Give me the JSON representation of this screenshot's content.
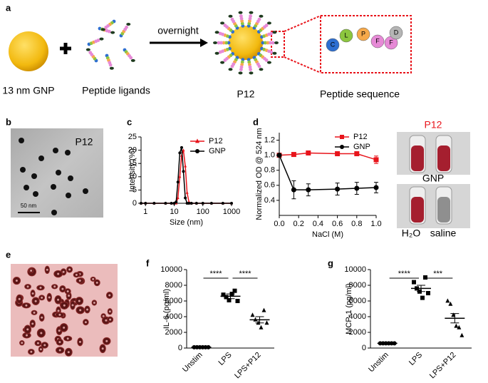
{
  "panel_labels": [
    "a",
    "b",
    "c",
    "d",
    "e",
    "f",
    "g"
  ],
  "scheme": {
    "gnp": "13 nm GNP",
    "ligands": "Peptide ligands",
    "arrow": "overnight",
    "product": "P12",
    "sequence_title": "Peptide sequence",
    "sequence": [
      "C",
      "L",
      "P",
      "F",
      "F",
      "D"
    ]
  },
  "tem": {
    "label": "P12",
    "scale_bar": "50 nm"
  },
  "tubes": {
    "top": "P12",
    "bottom": "GNP",
    "water": "H₂O",
    "saline": "saline"
  },
  "chart_data": [
    {
      "type": "line",
      "xlabel": "Size (nm)",
      "ylabel": "Intensity (%)",
      "xlog": true,
      "x": [
        0.7,
        1,
        2,
        5,
        8,
        10,
        11.7,
        13.5,
        15.7,
        18.2,
        21,
        24.4,
        28.2,
        32.7,
        40,
        60,
        100,
        200,
        500,
        1000
      ],
      "xlim": [
        0.7,
        1000
      ],
      "xticks": [
        1,
        10,
        100,
        1000
      ],
      "ylim": [
        0,
        25
      ],
      "yticks": [
        0,
        5,
        10,
        15,
        20,
        25
      ],
      "legend": "upper right",
      "series": [
        {
          "name": "P12",
          "color": "#e8141b",
          "marker": "triangle",
          "values": [
            0,
            0,
            0,
            0,
            0,
            0,
            0,
            2,
            10,
            18,
            20,
            14,
            4,
            0.5,
            0,
            0,
            0,
            0,
            0,
            0
          ]
        },
        {
          "name": "GNP",
          "color": "#000000",
          "marker": "circle",
          "values": [
            0,
            0,
            0,
            0,
            0,
            0,
            0.5,
            8,
            19,
            21,
            12,
            2,
            0,
            0,
            0,
            0,
            0,
            0,
            0,
            0
          ]
        }
      ]
    },
    {
      "type": "line",
      "xlabel": "NaCl (M)",
      "ylabel": "Normalized OD @ 524 nm",
      "x": [
        0,
        0.15,
        0.3,
        0.6,
        0.8,
        1
      ],
      "xlim": [
        0,
        1
      ],
      "xticks": [
        {
          "value": 0,
          "label": "0.0"
        },
        0.2,
        0.4,
        0.6,
        0.8,
        {
          "value": 1,
          "label": "1.0"
        }
      ],
      "ylim": [
        0.2,
        1.3
      ],
      "yticks": [
        0.4,
        0.6,
        0.8,
        {
          "value": 1,
          "label": "1.0"
        },
        1.2
      ],
      "legend": "upper right",
      "series": [
        {
          "name": "P12",
          "color": "#e8141b",
          "marker": "square",
          "values": [
            1,
            1.01,
            1.03,
            1.02,
            1.02,
            0.94
          ],
          "errors": [
            0,
            0.01,
            0.01,
            0.01,
            0.01,
            0.05
          ]
        },
        {
          "name": "GNP",
          "color": "#000000",
          "marker": "circle",
          "values": [
            1,
            0.54,
            0.54,
            0.55,
            0.56,
            0.57
          ],
          "errors": [
            0,
            0.12,
            0.08,
            0.08,
            0.08,
            0.07
          ]
        }
      ]
    },
    {
      "type": "dot",
      "ylabel": "IL-6 (pg/ml)",
      "categories": [
        "Unstim",
        "LPS",
        "LPS+P12"
      ],
      "markers": [
        "circle",
        "square",
        "triangle"
      ],
      "color": "#000000",
      "points": [
        [
          100,
          100,
          100,
          100,
          100,
          100
        ],
        [
          6800,
          6500,
          6100,
          6900,
          7300,
          6000
        ],
        [
          4200,
          3600,
          3200,
          2600,
          4800,
          3200
        ]
      ],
      "means": [
        100,
        6600,
        3600
      ],
      "errors": [
        0,
        300,
        400
      ],
      "ylim": [
        0,
        10000
      ],
      "yticks": [
        0,
        2000,
        4000,
        6000,
        8000,
        10000
      ],
      "significance": [
        {
          "label": "****",
          "between": [
            0,
            1
          ]
        },
        {
          "label": "****",
          "between": [
            1,
            2
          ]
        }
      ]
    },
    {
      "type": "dot",
      "ylabel": "MCP-1 (pg/ml)",
      "categories": [
        "Unstim",
        "LPS",
        "LPS+P12"
      ],
      "markers": [
        "circle",
        "square",
        "triangle"
      ],
      "color": "#000000",
      "points": [
        [
          600,
          600,
          600,
          600,
          600,
          600
        ],
        [
          8400,
          7600,
          7200,
          6400,
          9000,
          7000
        ],
        [
          6000,
          5600,
          4200,
          2800,
          2600,
          1600
        ]
      ],
      "means": [
        600,
        7600,
        3800
      ],
      "errors": [
        0,
        400,
        600
      ],
      "ylim": [
        0,
        10000
      ],
      "yticks": [
        0,
        2000,
        4000,
        6000,
        8000,
        10000
      ],
      "significance": [
        {
          "label": "****",
          "between": [
            0,
            1
          ]
        },
        {
          "label": "***",
          "between": [
            1,
            2
          ]
        }
      ]
    }
  ]
}
